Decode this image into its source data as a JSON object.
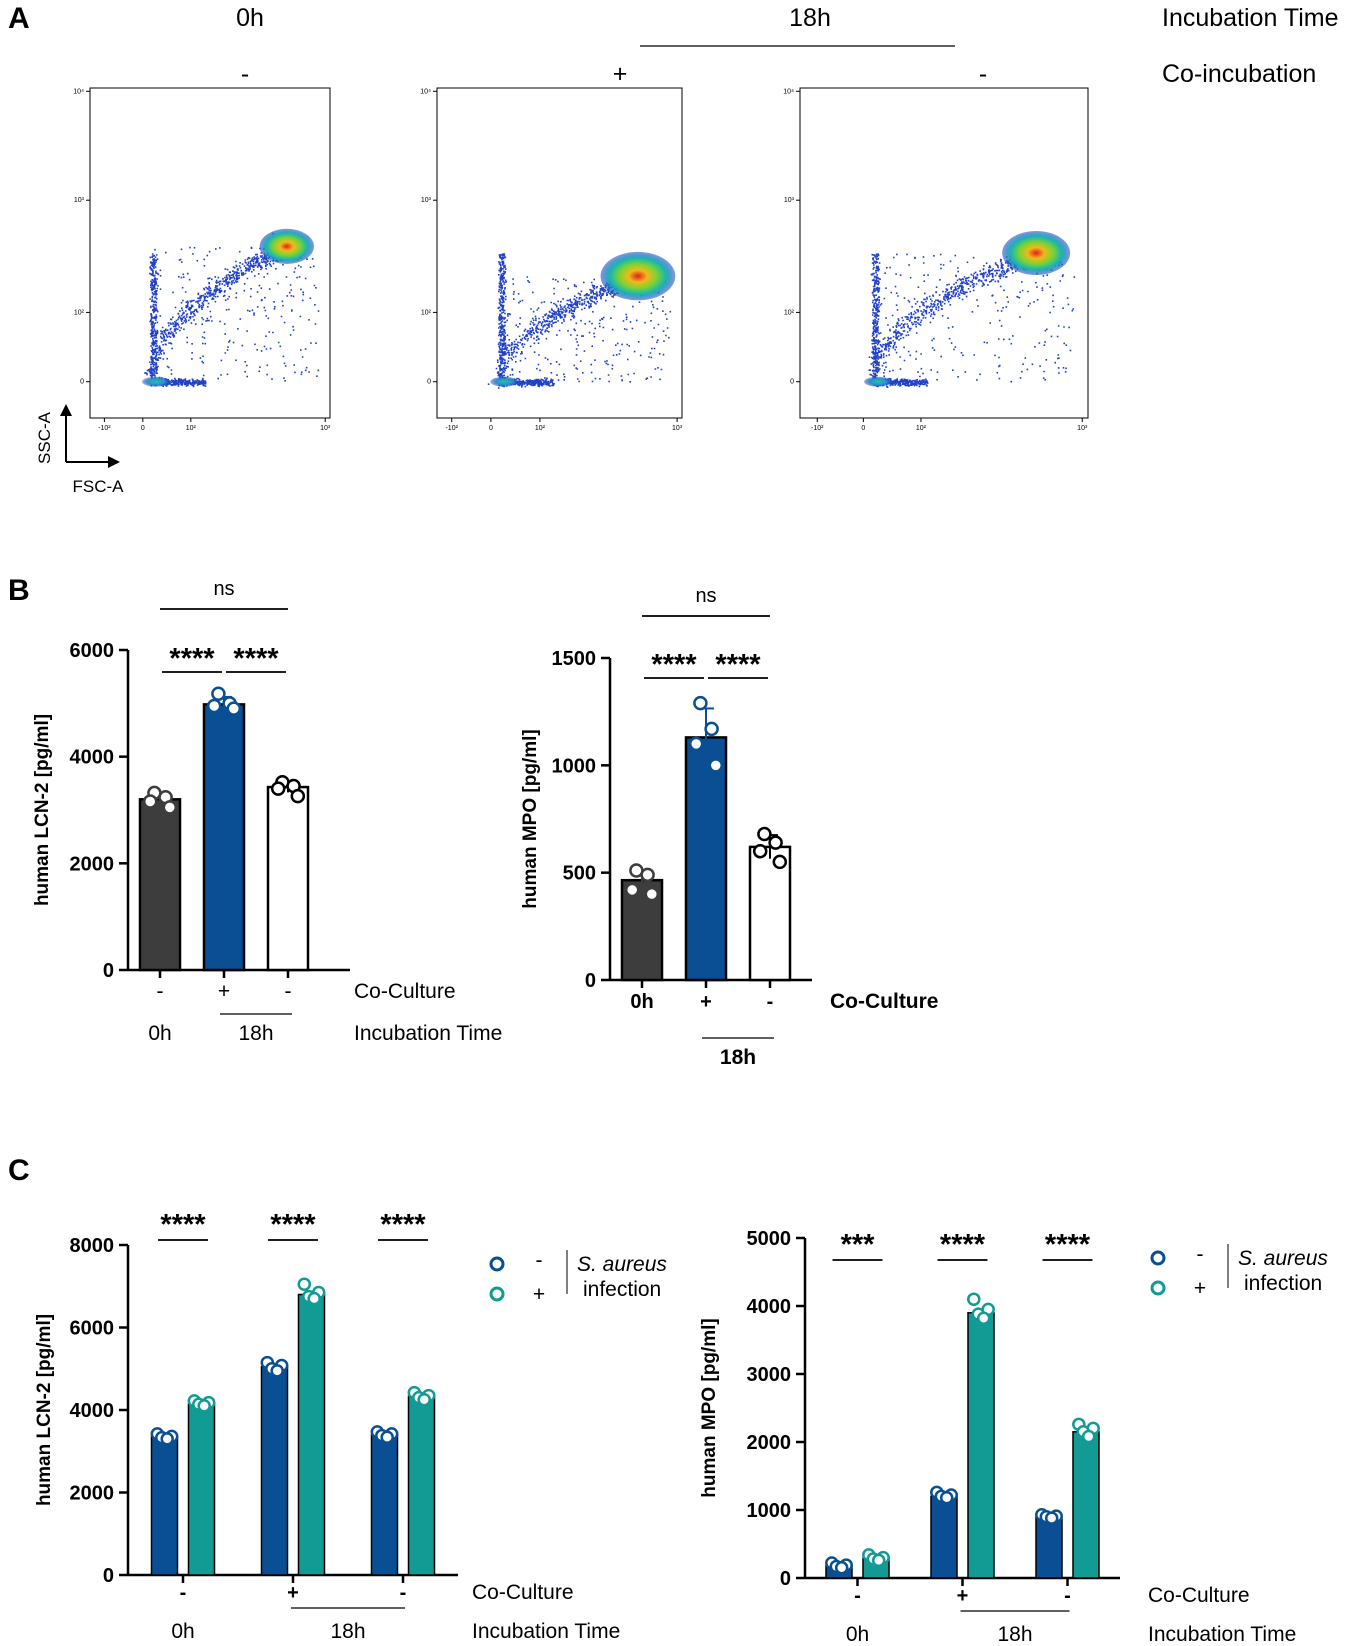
{
  "panels": {
    "a": "A",
    "b": "B",
    "c": "C"
  },
  "colors": {
    "dark": "#3d3d3d",
    "blue": "#0a4f93",
    "teal": "#119b94",
    "white": "#ffffff"
  },
  "panel_a": {
    "time_header": {
      "t0": "0h",
      "t18": "18h",
      "label": "Incubation Time"
    },
    "co_header": {
      "p1": "-",
      "p2": "+",
      "p3": "-",
      "label": "Co-incubation"
    },
    "plot_ticks": {
      "y": [
        "10⁴",
        "10³",
        "10²",
        "0"
      ],
      "x": [
        "-10²",
        "0",
        "10²",
        "10³"
      ]
    },
    "axis_legend": {
      "y": "SSC-A",
      "x": "FSC-A"
    }
  },
  "chart_data": [
    {
      "id": "b_lcn2",
      "type": "bar",
      "ylabel": "human LCN-2 [pg/ml]",
      "ylim": [
        0,
        6000
      ],
      "yticks": [
        "0",
        "2000",
        "4000",
        "6000"
      ],
      "categories": [
        "-",
        "+",
        "-"
      ],
      "values": [
        3200,
        4980,
        3430
      ],
      "errors": [
        90,
        140,
        100
      ],
      "points": [
        [
          3320,
          3240,
          3160,
          3050
        ],
        [
          5180,
          5000,
          4950,
          4900
        ],
        [
          3520,
          3450,
          3400,
          3260
        ]
      ],
      "colors": [
        "#3d3d3d",
        "#0a4f93",
        "#ffffff"
      ],
      "row1_label": "Co-Culture",
      "time_labels": {
        "t0": "0h",
        "t18": "18h",
        "label": "Incubation Time"
      },
      "stats": {
        "ns": "ns",
        "s1": "****",
        "s2": "****"
      }
    },
    {
      "id": "b_mpo",
      "type": "bar",
      "ylabel": "human MPO [pg/ml]",
      "ylim": [
        0,
        1500
      ],
      "yticks": [
        "0",
        "500",
        "1000",
        "1500"
      ],
      "categories": [
        "0h",
        "+",
        "-"
      ],
      "values": [
        465,
        1130,
        620
      ],
      "errors": [
        35,
        135,
        55
      ],
      "points": [
        [
          510,
          490,
          420,
          400
        ],
        [
          1290,
          1170,
          1100,
          1000
        ],
        [
          680,
          640,
          600,
          550
        ]
      ],
      "colors": [
        "#3d3d3d",
        "#0a4f93",
        "#ffffff"
      ],
      "row1_label": "Co-Culture",
      "time_labels": {
        "t18": "18h"
      },
      "stats": {
        "ns": "ns",
        "s1": "****",
        "s2": "****"
      }
    },
    {
      "id": "c_lcn2",
      "type": "bar",
      "ylabel": "human LCN-2 [pg/ml]",
      "ylim": [
        0,
        8000
      ],
      "yticks": [
        "0",
        "2000",
        "4000",
        "6000",
        "8000"
      ],
      "categories": [
        "-",
        "+",
        "-"
      ],
      "series": [
        {
          "name": "-",
          "values": [
            3350,
            5050,
            3400
          ],
          "points": [
            [
              3420,
              3360,
              3330,
              3300
            ],
            [
              5150,
              5080,
              5000,
              4950
            ],
            [
              3470,
              3420,
              3380,
              3340
            ]
          ]
        },
        {
          "name": "+",
          "values": [
            4150,
            6800,
            4330
          ],
          "points": [
            [
              4220,
              4180,
              4140,
              4100
            ],
            [
              7050,
              6850,
              6750,
              6700
            ],
            [
              4420,
              4350,
              4300,
              4250
            ]
          ]
        }
      ],
      "row1_label": "Co-Culture",
      "time_labels": {
        "t0": "0h",
        "t18": "18h",
        "label": "Incubation Time"
      },
      "stats": [
        "****",
        "****",
        "****"
      ],
      "legend": {
        "neg": "-",
        "pos": "+",
        "l1": "S. aureus",
        "l2": "infection"
      }
    },
    {
      "id": "c_mpo",
      "type": "bar",
      "ylabel": "human MPO [pg/ml]",
      "ylim": [
        0,
        5000
      ],
      "yticks": [
        "0",
        "1000",
        "2000",
        "3000",
        "4000",
        "5000"
      ],
      "categories": [
        "-",
        "+",
        "-"
      ],
      "series": [
        {
          "name": "-",
          "values": [
            180,
            1200,
            900
          ],
          "points": [
            [
              220,
              190,
              170,
              150
            ],
            [
              1260,
              1220,
              1200,
              1180
            ],
            [
              930,
              910,
              900,
              880
            ]
          ]
        },
        {
          "name": "+",
          "values": [
            290,
            3900,
            2150
          ],
          "points": [
            [
              340,
              300,
              280,
              260
            ],
            [
              4100,
              3950,
              3880,
              3820
            ],
            [
              2260,
              2200,
              2150,
              2080
            ]
          ]
        }
      ],
      "row1_label": "Co-Culture",
      "time_labels": {
        "t0": "0h",
        "t18": "18h",
        "label": "Incubation Time"
      },
      "stats": [
        "***",
        "****",
        "****"
      ],
      "legend": {
        "neg": "-",
        "pos": "+",
        "l1": "S. aureus",
        "l2": "infection"
      }
    }
  ]
}
